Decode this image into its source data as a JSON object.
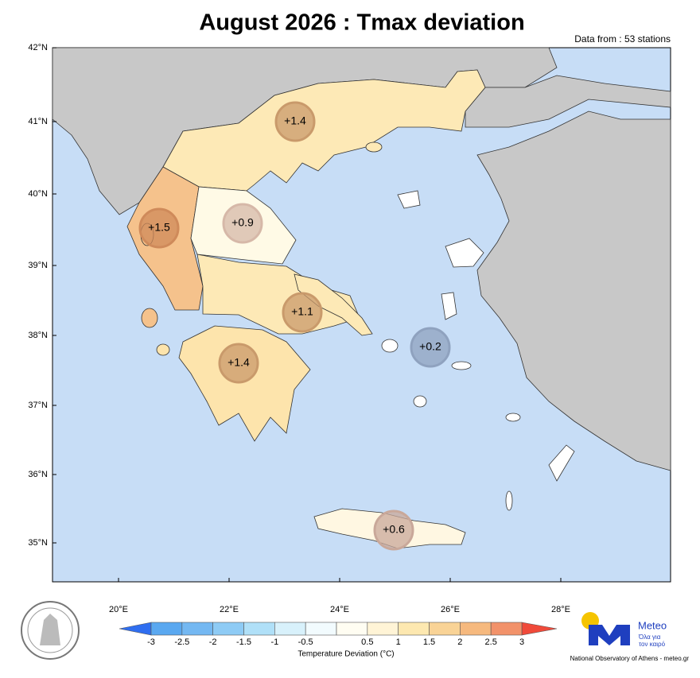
{
  "header": {
    "title": "August 2026 : Tmax deviation",
    "note": "Data from : 53 stations"
  },
  "map": {
    "lat_labels": [
      "42°N",
      "41°N",
      "40°N",
      "39°N",
      "38°N",
      "37°N",
      "36°N",
      "35°N"
    ],
    "lon_labels": [
      "20°E",
      "22°E",
      "24°E",
      "26°E",
      "28°E"
    ],
    "region_labels": [
      "+1.4",
      "+1.5",
      "+0.9",
      "+1.1",
      "+1.4",
      "+0.2",
      "+0.6"
    ]
  },
  "colorbar": {
    "ticks": [
      "-3",
      "-2.5",
      "-2",
      "-1.5",
      "-1",
      "-0.5",
      "0.5",
      "1",
      "1.5",
      "2",
      "2.5",
      "3"
    ],
    "title": "Temperature Deviation (°C)"
  },
  "brand": {
    "name": "Meteo",
    "tagline": [
      "Όλα για",
      "τον καιρό"
    ],
    "credit": "National Observatory of Athens - meteo.gr"
  }
}
